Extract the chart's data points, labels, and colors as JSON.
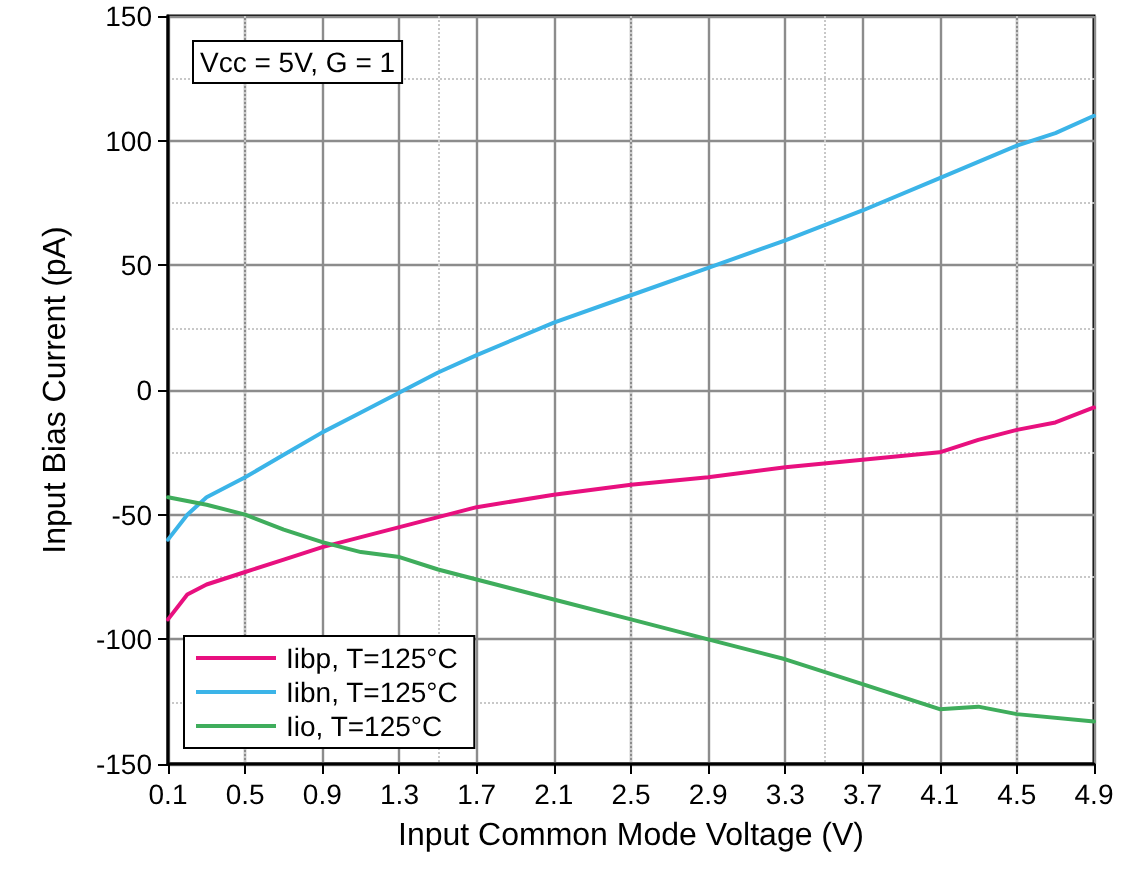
{
  "chart_data": {
    "type": "line",
    "xlabel": "Input Common Mode Voltage (V)",
    "ylabel": "Input Bias Current (pA)",
    "annotations": [
      "Vcc = 5V, G = 1"
    ],
    "xlim": [
      0.1,
      4.9
    ],
    "xticks": [
      0.1,
      0.5,
      0.9,
      1.3,
      1.7,
      2.1,
      2.5,
      2.9,
      3.3,
      3.7,
      4.1,
      4.5,
      4.9
    ],
    "ylim": [
      -150,
      150
    ],
    "yticks": [
      -150,
      -100,
      -50,
      0,
      50,
      100,
      150
    ],
    "grid": true,
    "legend": "bottom left",
    "marker": "none",
    "line_style": "solid",
    "series": [
      {
        "name": "Iibp, T=125°C",
        "color": "#e8107f",
        "x": [
          0.1,
          0.2,
          0.3,
          0.5,
          0.7,
          0.9,
          1.1,
          1.3,
          1.5,
          1.7,
          2.1,
          2.5,
          2.9,
          3.3,
          3.7,
          4.1,
          4.3,
          4.5,
          4.7,
          4.9
        ],
        "values": [
          -92,
          -82,
          -78,
          -73,
          -68,
          -63,
          -59,
          -55,
          -51,
          -47,
          -42,
          -38,
          -35,
          -31,
          -28,
          -25,
          -20,
          -16,
          -13,
          -7
        ]
      },
      {
        "name": "Iibn, T=125°C",
        "color": "#3bb4e8",
        "x": [
          0.1,
          0.2,
          0.3,
          0.5,
          0.7,
          0.9,
          1.1,
          1.3,
          1.5,
          1.7,
          2.1,
          2.5,
          2.9,
          3.3,
          3.7,
          4.1,
          4.5,
          4.7,
          4.9
        ],
        "values": [
          -60,
          -50,
          -43,
          -35,
          -26,
          -17,
          -9,
          -1,
          7,
          14,
          27,
          38,
          49,
          60,
          72,
          85,
          98,
          103,
          110
        ]
      },
      {
        "name": "Iio, T=125°C",
        "color": "#3fad5c",
        "x": [
          0.1,
          0.3,
          0.5,
          0.7,
          0.9,
          1.1,
          1.3,
          1.5,
          1.7,
          2.1,
          2.5,
          2.9,
          3.3,
          3.7,
          4.1,
          4.3,
          4.5,
          4.9
        ],
        "values": [
          -43,
          -46,
          -50,
          -56,
          -61,
          -65,
          -67,
          -72,
          -76,
          -84,
          -92,
          -100,
          -108,
          -118,
          -128,
          -127,
          -130,
          -133
        ]
      }
    ]
  }
}
